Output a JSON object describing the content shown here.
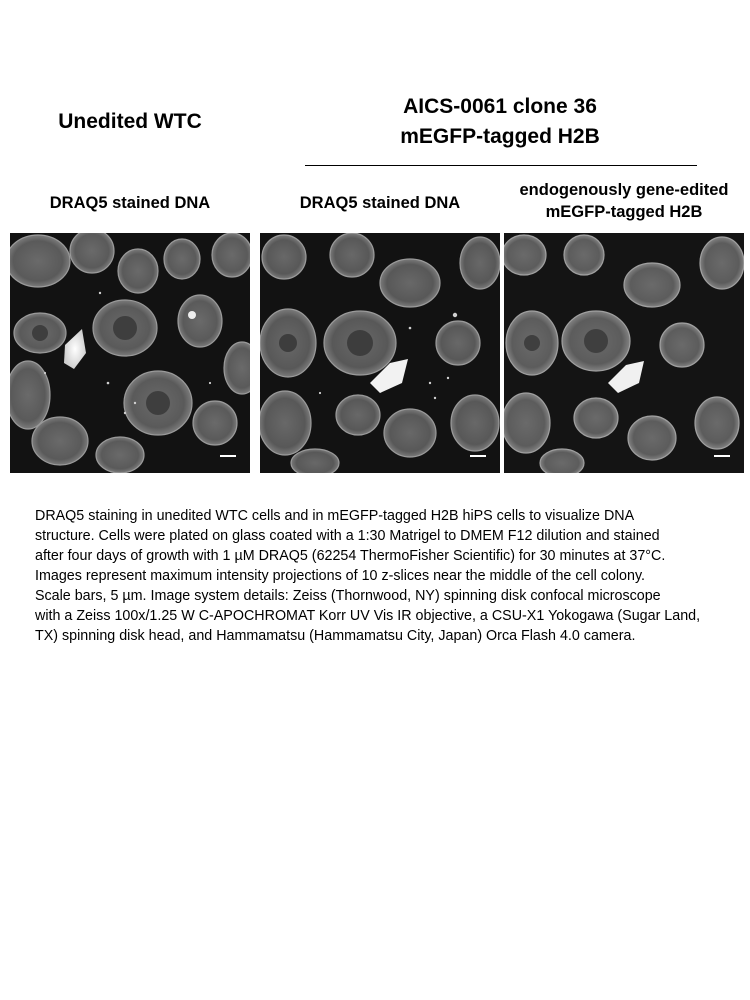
{
  "header": {
    "left_title": "Unedited WTC",
    "right_title_line1": "AICS-0061 clone 36",
    "right_title_line2": "mEGFP-tagged H2B"
  },
  "columns": [
    {
      "label": "DRAQ5 stained DNA"
    },
    {
      "label": "DRAQ5 stained DNA"
    },
    {
      "label_line1": "endogenously gene-edited",
      "label_line2": "mEGFP-tagged H2B"
    }
  ],
  "panels": [
    {
      "name": "unedited-wtc-draq5-image"
    },
    {
      "name": "h2b-draq5-image"
    },
    {
      "name": "h2b-megfp-image"
    }
  ],
  "caption": "DRAQ5 staining in unedited WTC cells and in mEGFP-tagged H2B hiPS cells to visualize DNA\nstructure. Cells were plated on glass coated with a 1:30 Matrigel to DMEM F12 dilution and stained\nafter four days of growth with 1 µM DRAQ5 (62254 ThermoFisher Scientific) for 30 minutes at 37°C.\nImages represent maximum intensity projections of 10 z-slices near the middle of the cell colony.\nScale bars, 5 µm. Image system details: Zeiss (Thornwood, NY) spinning disk confocal microscope\nwith a Zeiss 100x/1.25 W C-APOCHROMAT Korr UV Vis IR objective, a CSU-X1 Yokogawa (Sugar Land,\nTX) spinning disk head, and Hammamatsu (Hammamatsu City, Japan) Orca Flash 4.0 camera."
}
